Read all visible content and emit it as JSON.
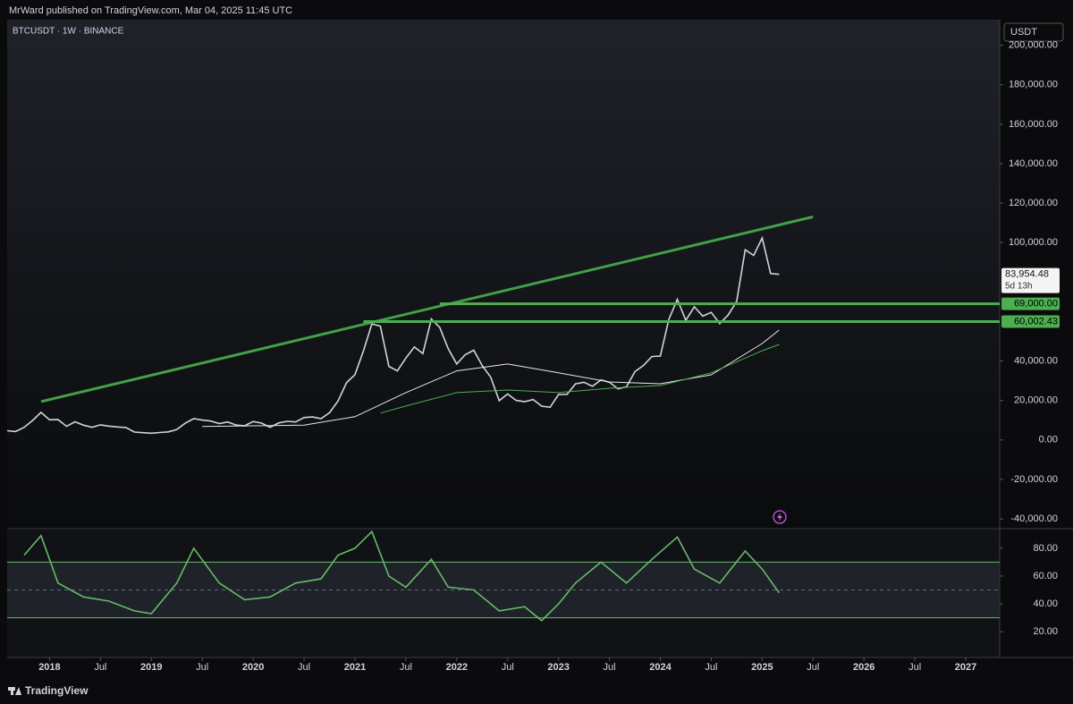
{
  "header": {
    "publisher": "MrWard published on TradingView.com, Mar 04, 2025 11:45 UTC",
    "symbol": "BTCUSDT · 1W · BINANCE",
    "currency": "USDT",
    "brand": "TradingView"
  },
  "chart_data": [
    {
      "type": "line",
      "xlim": [
        "2017-08",
        "2027-05"
      ],
      "xticks": [
        {
          "value": "2018-01",
          "label": "2018"
        },
        {
          "value": "2018-07",
          "label": "Jul"
        },
        {
          "value": "2019-01",
          "label": "2019"
        },
        {
          "value": "2019-07",
          "label": "Jul"
        },
        {
          "value": "2020-01",
          "label": "2020"
        },
        {
          "value": "2020-07",
          "label": "Jul"
        },
        {
          "value": "2021-01",
          "label": "2021"
        },
        {
          "value": "2021-07",
          "label": "Jul"
        },
        {
          "value": "2022-01",
          "label": "2022"
        },
        {
          "value": "2022-07",
          "label": "Jul"
        },
        {
          "value": "2023-01",
          "label": "2023"
        },
        {
          "value": "2023-07",
          "label": "Jul"
        },
        {
          "value": "2024-01",
          "label": "2024"
        },
        {
          "value": "2024-07",
          "label": "Jul"
        },
        {
          "value": "2025-01",
          "label": "2025"
        },
        {
          "value": "2025-07",
          "label": "Jul"
        },
        {
          "value": "2026-01",
          "label": "2026"
        },
        {
          "value": "2026-07",
          "label": "Jul"
        },
        {
          "value": "2027-01",
          "label": "2027"
        }
      ],
      "ylim": [
        -44500,
        213000
      ],
      "yticks": [
        {
          "value": -40000,
          "label": "-40,000.00"
        },
        {
          "value": -20000,
          "label": "-20,000.00"
        },
        {
          "value": 0,
          "label": "0.00"
        },
        {
          "value": 20000,
          "label": "20,000.00"
        },
        {
          "value": 40000,
          "label": "40,000.00"
        },
        {
          "value": 100000,
          "label": "100,000.00"
        },
        {
          "value": 120000,
          "label": "120,000.00"
        },
        {
          "value": 140000,
          "label": "140,000.00"
        },
        {
          "value": 160000,
          "label": "160,000.00"
        },
        {
          "value": 180000,
          "label": "180,000.00"
        },
        {
          "value": 200000,
          "label": "200,000.00"
        }
      ],
      "x": [
        "2017-08",
        "2017-09",
        "2017-10",
        "2017-11",
        "2017-12",
        "2018-01",
        "2018-02",
        "2018-03",
        "2018-04",
        "2018-05",
        "2018-06",
        "2018-07",
        "2018-08",
        "2018-09",
        "2018-10",
        "2018-11",
        "2018-12",
        "2019-01",
        "2019-02",
        "2019-03",
        "2019-04",
        "2019-05",
        "2019-06",
        "2019-07",
        "2019-08",
        "2019-09",
        "2019-10",
        "2019-11",
        "2019-12",
        "2020-01",
        "2020-02",
        "2020-03",
        "2020-04",
        "2020-05",
        "2020-06",
        "2020-07",
        "2020-08",
        "2020-09",
        "2020-10",
        "2020-11",
        "2020-12",
        "2021-01",
        "2021-02",
        "2021-03",
        "2021-04",
        "2021-05",
        "2021-06",
        "2021-07",
        "2021-08",
        "2021-09",
        "2021-10",
        "2021-11",
        "2021-12",
        "2022-01",
        "2022-02",
        "2022-03",
        "2022-04",
        "2022-05",
        "2022-06",
        "2022-07",
        "2022-08",
        "2022-09",
        "2022-10",
        "2022-11",
        "2022-12",
        "2023-01",
        "2023-02",
        "2023-03",
        "2023-04",
        "2023-05",
        "2023-06",
        "2023-07",
        "2023-08",
        "2023-09",
        "2023-10",
        "2023-11",
        "2023-12",
        "2024-01",
        "2024-02",
        "2024-03",
        "2024-04",
        "2024-05",
        "2024-06",
        "2024-07",
        "2024-08",
        "2024-09",
        "2024-10",
        "2024-11",
        "2024-12",
        "2025-01",
        "2025-02",
        "2025-03"
      ],
      "series": [
        {
          "color": "#d1d4dc",
          "values": [
            4700,
            4300,
            6400,
            9900,
            14000,
            10200,
            10300,
            6900,
            9200,
            7500,
            6400,
            7700,
            7000,
            6600,
            6300,
            4000,
            3700,
            3400,
            3800,
            4100,
            5300,
            8500,
            10800,
            10100,
            9600,
            8300,
            9150,
            7550,
            7200,
            9350,
            8550,
            6400,
            8650,
            9450,
            9150,
            11350,
            11650,
            10800,
            13800,
            19700,
            29000,
            33100,
            45200,
            58800,
            57700,
            37300,
            35000,
            41500,
            47100,
            43800,
            61300,
            57000,
            46200,
            38500,
            43200,
            45500,
            37700,
            31800,
            19900,
            23300,
            20050,
            19400,
            20500,
            17150,
            16550,
            23100,
            23150,
            28450,
            29250,
            27200,
            30450,
            29250,
            25950,
            26950,
            34650,
            37700,
            42250,
            42550,
            61150,
            71300,
            60650,
            67500,
            62750,
            64650,
            58950,
            63350,
            70300,
            96400,
            93550,
            102400,
            84350,
            83954.48
          ]
        },
        {
          "color": "#e8e8e8",
          "x": [
            "2019-07",
            "2020-07",
            "2021-01",
            "2021-07",
            "2022-01",
            "2022-07",
            "2023-01",
            "2023-07",
            "2024-01",
            "2024-07",
            "2025-01",
            "2025-03"
          ],
          "values": [
            6800,
            7500,
            11800,
            24000,
            35000,
            38500,
            34000,
            29400,
            28500,
            33000,
            48900,
            55700
          ]
        },
        {
          "color": "#4caf50",
          "x": [
            "2021-04",
            "2021-07",
            "2022-01",
            "2022-07",
            "2023-01",
            "2023-07",
            "2024-01",
            "2024-07",
            "2025-01",
            "2025-03"
          ],
          "values": [
            13600,
            17200,
            24000,
            25300,
            24000,
            26200,
            27600,
            34000,
            45200,
            48400
          ]
        }
      ],
      "trendline": {
        "color": "#43a047",
        "x": [
          "2017-12",
          "2025-07"
        ],
        "values": [
          19450,
          113100
        ]
      },
      "levels": [
        {
          "value": 69000,
          "label": "69,000.00",
          "start": "2021-11",
          "color": "#4caf50"
        },
        {
          "value": 60002.43,
          "label": "60,002.43",
          "start": "2021-02",
          "color": "#4caf50"
        }
      ],
      "last_price": {
        "value": 83954.48,
        "label": "83,954.48",
        "countdown": "5d 13h"
      }
    },
    {
      "type": "line",
      "ylim": [
        1.5,
        93.4
      ],
      "yticks": [
        {
          "value": 20,
          "label": "20.00"
        },
        {
          "value": 40,
          "label": "40.00"
        },
        {
          "value": 60,
          "label": "60.00"
        },
        {
          "value": 80,
          "label": "80.00"
        }
      ],
      "bands": [
        30,
        70
      ],
      "midline": 50,
      "x": [
        "2017-10",
        "2017-12",
        "2018-02",
        "2018-05",
        "2018-08",
        "2018-11",
        "2019-01",
        "2019-04",
        "2019-06",
        "2019-09",
        "2019-12",
        "2020-03",
        "2020-06",
        "2020-09",
        "2020-11",
        "2021-01",
        "2021-03",
        "2021-05",
        "2021-07",
        "2021-10",
        "2021-12",
        "2022-03",
        "2022-06",
        "2022-09",
        "2022-11",
        "2023-01",
        "2023-03",
        "2023-06",
        "2023-09",
        "2023-12",
        "2024-03",
        "2024-05",
        "2024-08",
        "2024-11",
        "2025-01",
        "2025-03"
      ],
      "series": [
        {
          "color": "#66bb6a",
          "values": [
            75,
            89,
            55,
            45,
            42,
            35,
            33,
            55,
            80,
            55,
            43,
            45,
            55,
            58,
            75,
            80,
            92,
            60,
            52,
            72,
            52,
            50,
            35,
            38,
            28,
            40,
            55,
            70,
            55,
            72,
            88,
            65,
            55,
            78,
            65,
            48
          ]
        }
      ]
    }
  ]
}
